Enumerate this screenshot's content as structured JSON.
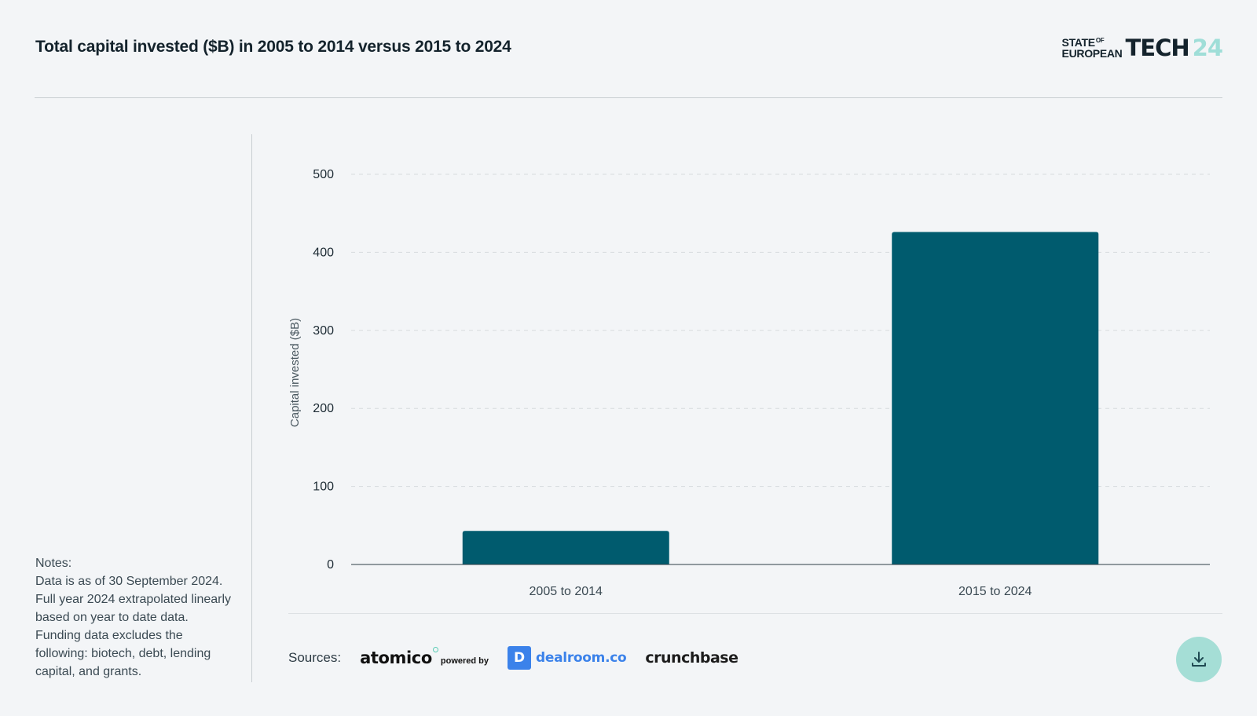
{
  "header": {
    "title": "Total capital invested ($B) in 2005 to 2014 versus 2015 to 2024",
    "brand_state": "STATE",
    "brand_of": "OF",
    "brand_european": "EUROPEAN",
    "brand_tech": "TECH",
    "brand_year": "24"
  },
  "notes": {
    "label": "Notes:",
    "text": "Data is as of 30 September 2024. Full year 2024 extrapolated linearly based on year to date data. Funding data excludes the following: biotech, debt, lending capital, and grants."
  },
  "chart_data": {
    "type": "bar",
    "categories": [
      "2005 to 2014",
      "2015 to 2024"
    ],
    "values": [
      43,
      426
    ],
    "title": "Total capital invested ($B) in 2005 to 2014 versus 2015 to 2024",
    "xlabel": "",
    "ylabel": "Capital invested ($B)",
    "ylim": [
      0,
      500
    ],
    "yticks": [
      0,
      100,
      200,
      300,
      400,
      500
    ],
    "grid": true,
    "bar_color": "#005b6e",
    "legend": "none"
  },
  "footer": {
    "sources_label": "Sources:",
    "atomico": "atomico",
    "powered_by": "powered by",
    "dealroom_mark": "D",
    "dealroom": "dealroom.co",
    "crunchbase": "crunchbase",
    "download_icon": "download-icon"
  },
  "colors": {
    "background": "#f3f5f7",
    "bar": "#005b6e",
    "accent": "#a5ded6",
    "dealroom_blue": "#3b82ea"
  }
}
